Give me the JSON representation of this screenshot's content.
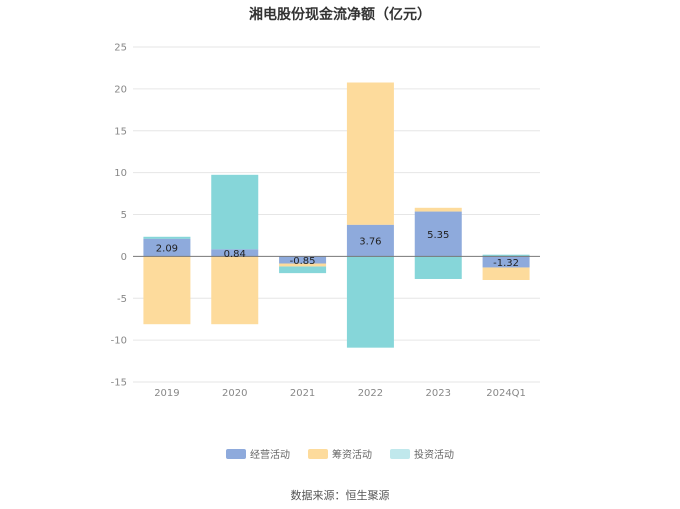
{
  "chart_data": {
    "type": "bar",
    "stacked": true,
    "title": "湘电股份现金流净额（亿元）",
    "categories": [
      "2019",
      "2020",
      "2021",
      "2022",
      "2023",
      "2024Q1"
    ],
    "ylim": [
      -15,
      25
    ],
    "yticks": [
      25,
      20,
      15,
      10,
      5,
      0,
      -5,
      -10,
      -15
    ],
    "grid": true,
    "legend_position": "bottom",
    "series": [
      {
        "name": "经营活动",
        "color": "#8eaadc",
        "values": [
          2.09,
          0.84,
          -0.85,
          3.76,
          5.35,
          -1.32
        ]
      },
      {
        "name": "筹资活动",
        "color": "#fddb9c",
        "values": [
          -8.1,
          -8.1,
          -0.35,
          17.0,
          0.45,
          -1.5
        ]
      },
      {
        "name": "投资活动",
        "color": "#86d6d9",
        "values": [
          0.25,
          8.9,
          -0.8,
          -10.9,
          -2.7,
          0.2
        ]
      }
    ],
    "data_labels": [
      "2.09",
      "0.84",
      "-0.85",
      "3.76",
      "5.35",
      "-1.32"
    ]
  },
  "source": "数据来源：恒生聚源"
}
